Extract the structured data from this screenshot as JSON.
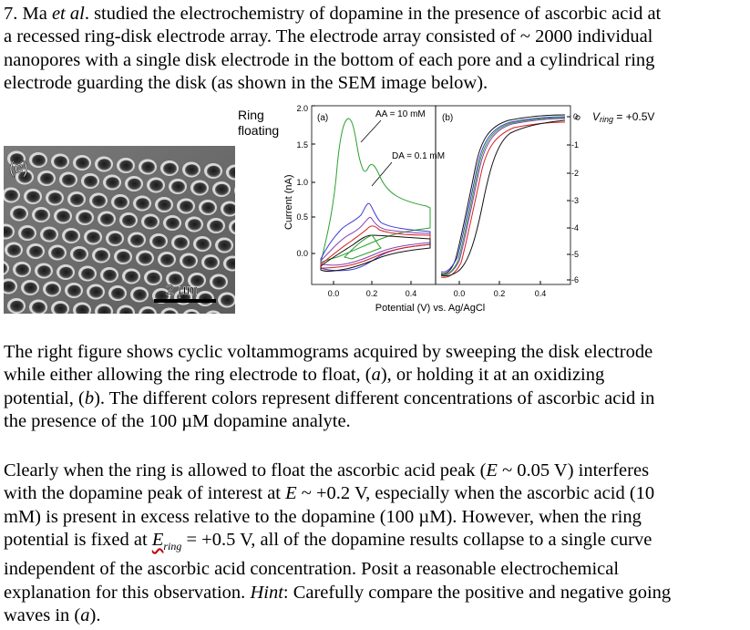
{
  "intro": {
    "line1": "7.  Ma ",
    "line1_italic": "et al",
    "line1_rest": ". studied the electrochemistry of dopamine in the presence of ascorbic acid at",
    "line2": "a recessed ring-disk electrode array.  The electrode array consisted of ~ 2000 individual",
    "line3": "nanopores with a single disk electrode in the bottom of each pore and a cylindrical ring",
    "line4": "electrode guarding the disk (as shown in the SEM image below)."
  },
  "sem": {
    "label": "(c)",
    "scale": "2 µm"
  },
  "figure": {
    "ring_label_1": "Ring",
    "ring_label_2": "floating",
    "panel_a": "(a)",
    "panel_b": "(b)",
    "aa_label": "AA = 10 mM",
    "da_label": "DA = 0.1 mM",
    "vring_label": "V",
    "vring_sub": "ring",
    "vring_value": " = +0.5V",
    "ylabel": "Current (nA)",
    "xlabel": "Potential (V) vs. Ag/AgCl",
    "left_y_ticks": [
      "2.0",
      "1.5",
      "1.0",
      "0.5",
      "0.0"
    ],
    "right_y_ticks": [
      "0",
      "-1",
      "-2",
      "-3",
      "-4",
      "-5",
      "-6"
    ],
    "x_ticks_a": [
      "0.0",
      "0.2",
      "0.4"
    ],
    "x_ticks_b": [
      "0.0",
      "0.2",
      "0.4"
    ],
    "colors": {
      "green": "#2ca02c",
      "blue": "#3b3bd6",
      "red": "#d62020",
      "black": "#111111",
      "purple": "#8a3fb0"
    }
  },
  "para2": {
    "line1": "The right figure shows cyclic voltammograms acquired by sweeping the disk electrode",
    "line2a": "while either allowing the ring electrode to float, (",
    "line2i": "a",
    "line2b": "), or holding it at an oxidizing",
    "line3a": "potential, (",
    "line3i": "b",
    "line3b": ").  The different colors represent different concentrations of ascorbic acid in",
    "line4": "the presence of the 100 µM dopamine analyte."
  },
  "para3": {
    "l1a": "Clearly when the ring is allowed to float the ascorbic acid peak (",
    "l1i": "E",
    "l1b": " ~ 0.05 V) interferes",
    "l2a": "with the dopamine peak of interest at ",
    "l2i": "E",
    "l2b": " ~ +0.2 V, especially when the ascorbic acid (10",
    "l3": "mM) is present in excess relative to the dopamine (100 µM).  However, when the ring",
    "l4a": "potential is fixed at ",
    "l4i": "E",
    "l4sub": "ring",
    "l4b": " = +0.5 V, all of the dopamine results collapse to a single curve",
    "l5": "independent of the ascorbic acid concentration.  Posit a reasonable electrochemical",
    "l6a": "explanation for this observation.  ",
    "l6i": "Hint",
    "l6b": ": Carefully compare the positive and negative going",
    "l7a": "waves in (",
    "l7i": "a",
    "l7b": ")."
  }
}
